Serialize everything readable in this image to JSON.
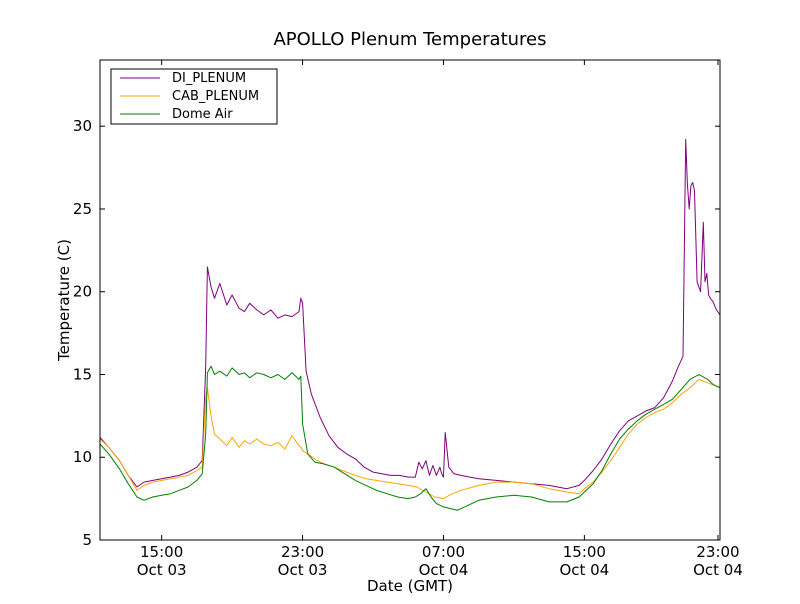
{
  "chart_data": {
    "type": "line",
    "title": "APOLLO Plenum Temperatures",
    "xlabel": "Date (GMT)",
    "ylabel": "Temperature (C)",
    "xlim": [
      11.5,
      46.7
    ],
    "ylim": [
      5,
      34
    ],
    "legend_position": "top-left",
    "grid": false,
    "x_unit": "hours since Oct 03 00:00 GMT",
    "x_ticks": [
      {
        "value": 15,
        "label": "15:00",
        "sublabel": "Oct 03"
      },
      {
        "value": 23,
        "label": "23:00",
        "sublabel": "Oct 03"
      },
      {
        "value": 31,
        "label": "07:00",
        "sublabel": "Oct 04"
      },
      {
        "value": 39,
        "label": "15:00",
        "sublabel": "Oct 04"
      },
      {
        "value": 47,
        "label": "23:00",
        "sublabel": "Oct 04"
      }
    ],
    "y_ticks": [
      5,
      10,
      15,
      20,
      25,
      30
    ],
    "series": [
      {
        "name": "DI_PLENUM",
        "color": "#800080",
        "x": [
          11.5,
          12.0,
          12.6,
          13.1,
          13.6,
          14.0,
          14.5,
          15.0,
          15.5,
          16.0,
          16.5,
          17.0,
          17.3,
          17.5,
          17.6,
          17.8,
          18.0,
          18.3,
          18.7,
          19.0,
          19.4,
          19.7,
          20.0,
          20.4,
          20.8,
          21.2,
          21.6,
          22.0,
          22.4,
          22.8,
          22.9,
          23.0,
          23.2,
          23.5,
          24.0,
          24.5,
          25.0,
          25.5,
          26.0,
          26.5,
          27.0,
          27.5,
          28.0,
          28.5,
          29.0,
          29.4,
          29.6,
          29.8,
          30.0,
          30.2,
          30.4,
          30.6,
          30.8,
          30.9,
          31.0,
          31.1,
          31.3,
          31.6,
          32.0,
          32.5,
          33.0,
          34.0,
          35.0,
          36.0,
          37.0,
          38.0,
          38.7,
          39.0,
          39.5,
          40.0,
          40.5,
          41.0,
          41.5,
          42.0,
          42.5,
          43.0,
          43.5,
          44.0,
          44.3,
          44.6,
          44.75,
          44.85,
          44.95,
          45.05,
          45.15,
          45.25,
          45.4,
          45.6,
          45.75,
          45.85,
          45.95,
          46.05,
          46.15,
          46.3,
          46.5,
          46.7
        ],
        "values": [
          11.2,
          10.6,
          9.8,
          8.9,
          8.2,
          8.5,
          8.6,
          8.7,
          8.8,
          8.9,
          9.1,
          9.4,
          9.8,
          15.5,
          21.5,
          20.3,
          19.6,
          20.5,
          19.2,
          19.8,
          19.0,
          18.8,
          19.3,
          18.9,
          18.6,
          18.9,
          18.4,
          18.6,
          18.5,
          18.8,
          19.6,
          19.3,
          15.2,
          13.8,
          12.4,
          11.3,
          10.6,
          10.2,
          9.9,
          9.4,
          9.1,
          9.0,
          8.9,
          8.9,
          8.8,
          8.8,
          9.7,
          9.3,
          9.8,
          8.9,
          9.5,
          8.9,
          9.4,
          9.0,
          8.8,
          11.5,
          9.4,
          9.0,
          8.9,
          8.8,
          8.7,
          8.6,
          8.5,
          8.4,
          8.3,
          8.1,
          8.3,
          8.6,
          9.2,
          9.9,
          10.8,
          11.6,
          12.2,
          12.5,
          12.8,
          13.0,
          13.6,
          14.6,
          15.4,
          16.1,
          29.2,
          26.5,
          25.0,
          26.4,
          26.6,
          26.1,
          20.6,
          20.0,
          24.2,
          20.6,
          21.1,
          19.8,
          19.6,
          19.4,
          18.9,
          18.6
        ]
      },
      {
        "name": "CAB_PLENUM",
        "color": "#ffa500",
        "x": [
          11.5,
          12.0,
          12.6,
          13.1,
          13.6,
          14.0,
          14.5,
          15.0,
          15.5,
          16.0,
          16.5,
          17.0,
          17.3,
          17.5,
          17.6,
          17.8,
          18.0,
          18.3,
          18.7,
          19.0,
          19.4,
          19.7,
          20.0,
          20.4,
          20.8,
          21.2,
          21.6,
          22.0,
          22.4,
          22.8,
          22.9,
          23.0,
          23.3,
          23.7,
          24.2,
          24.8,
          25.5,
          26.0,
          26.6,
          27.2,
          27.8,
          28.4,
          29.0,
          29.5,
          30.0,
          30.5,
          31.0,
          31.5,
          32.0,
          33.0,
          34.0,
          35.0,
          36.0,
          37.0,
          38.0,
          38.7,
          39.0,
          39.5,
          40.0,
          40.5,
          41.0,
          41.5,
          42.0,
          42.5,
          43.0,
          43.5,
          44.0,
          44.5,
          45.0,
          45.5,
          46.0,
          46.7
        ],
        "values": [
          11.1,
          10.6,
          9.8,
          8.9,
          8.0,
          8.3,
          8.5,
          8.6,
          8.7,
          8.8,
          8.9,
          9.2,
          9.4,
          13.6,
          14.2,
          12.5,
          11.4,
          11.1,
          10.7,
          11.2,
          10.6,
          11.0,
          10.8,
          11.1,
          10.8,
          10.7,
          10.9,
          10.5,
          11.3,
          10.7,
          10.6,
          10.4,
          10.2,
          9.9,
          9.6,
          9.4,
          9.1,
          8.9,
          8.7,
          8.6,
          8.5,
          8.4,
          8.3,
          8.2,
          7.9,
          7.6,
          7.5,
          7.8,
          8.0,
          8.3,
          8.5,
          8.5,
          8.4,
          8.1,
          7.9,
          7.8,
          8.1,
          8.5,
          9.1,
          9.8,
          10.6,
          11.4,
          12.0,
          12.4,
          12.7,
          12.9,
          13.3,
          13.8,
          14.2,
          14.7,
          14.5,
          14.2
        ]
      },
      {
        "name": "Dome Air",
        "color": "#008000",
        "x": [
          11.5,
          12.0,
          12.6,
          13.1,
          13.6,
          14.0,
          14.5,
          15.0,
          15.5,
          16.0,
          16.5,
          17.0,
          17.3,
          17.5,
          17.6,
          17.8,
          18.0,
          18.3,
          18.7,
          19.0,
          19.4,
          19.7,
          20.0,
          20.4,
          20.8,
          21.2,
          21.6,
          22.0,
          22.4,
          22.8,
          22.9,
          23.0,
          23.3,
          23.7,
          24.2,
          24.8,
          25.4,
          26.0,
          26.6,
          27.2,
          27.8,
          28.4,
          29.0,
          29.4,
          29.7,
          30.0,
          30.3,
          30.6,
          31.0,
          31.4,
          31.8,
          32.2,
          33.0,
          34.0,
          35.0,
          36.0,
          37.0,
          38.0,
          38.7,
          39.0,
          39.5,
          40.0,
          40.5,
          41.0,
          41.5,
          42.0,
          42.5,
          43.0,
          43.5,
          44.0,
          44.5,
          45.0,
          45.5,
          46.0,
          46.3,
          46.7
        ],
        "values": [
          10.8,
          10.2,
          9.3,
          8.4,
          7.6,
          7.4,
          7.6,
          7.7,
          7.8,
          8.0,
          8.2,
          8.6,
          9.0,
          11.4,
          15.1,
          15.5,
          15.0,
          15.2,
          14.9,
          15.4,
          15.0,
          15.1,
          14.8,
          15.1,
          15.0,
          14.8,
          15.0,
          14.7,
          15.1,
          14.7,
          14.9,
          12.0,
          10.2,
          9.7,
          9.6,
          9.4,
          9.0,
          8.6,
          8.3,
          8.0,
          7.8,
          7.6,
          7.5,
          7.6,
          7.8,
          8.1,
          7.6,
          7.2,
          7.0,
          6.9,
          6.8,
          7.0,
          7.4,
          7.6,
          7.7,
          7.6,
          7.3,
          7.3,
          7.6,
          7.9,
          8.4,
          9.2,
          10.2,
          11.1,
          11.7,
          12.2,
          12.6,
          12.9,
          13.2,
          13.5,
          14.1,
          14.7,
          15.0,
          14.7,
          14.4,
          14.2
        ]
      }
    ]
  }
}
